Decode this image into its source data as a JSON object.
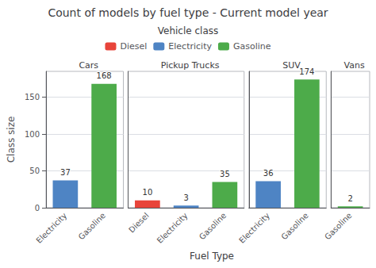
{
  "chart_data": {
    "type": "bar",
    "title": "Count of models by fuel type - Current model year",
    "xlabel": "Fuel Type",
    "ylabel": "Class size",
    "legend_title": "Vehicle class",
    "legend": "top",
    "grid": true,
    "data_labels": true,
    "ylim": [
      0,
      185
    ],
    "yticks": [
      0,
      50,
      100,
      150
    ],
    "series": [
      {
        "name": "Diesel",
        "color": "#e8443a"
      },
      {
        "name": "Electricity",
        "color": "#4e84c4"
      },
      {
        "name": "Gasoline",
        "color": "#4dab4a"
      }
    ],
    "panels": [
      {
        "title": "Cars",
        "categories": [
          "Electricity",
          "Gasoline"
        ],
        "values": [
          37,
          168
        ],
        "colors": [
          "#4e84c4",
          "#4dab4a"
        ]
      },
      {
        "title": "Pickup Trucks",
        "categories": [
          "Diesel",
          "Electricity",
          "Gasoline"
        ],
        "values": [
          10,
          3,
          35
        ],
        "colors": [
          "#e8443a",
          "#4e84c4",
          "#4dab4a"
        ]
      },
      {
        "title": "SUV",
        "categories": [
          "Electricity",
          "Gasoline"
        ],
        "values": [
          36,
          174
        ],
        "colors": [
          "#4e84c4",
          "#4dab4a"
        ]
      },
      {
        "title": "Vans",
        "categories": [
          "Gasoline"
        ],
        "values": [
          2
        ],
        "colors": [
          "#4dab4a"
        ]
      }
    ]
  }
}
